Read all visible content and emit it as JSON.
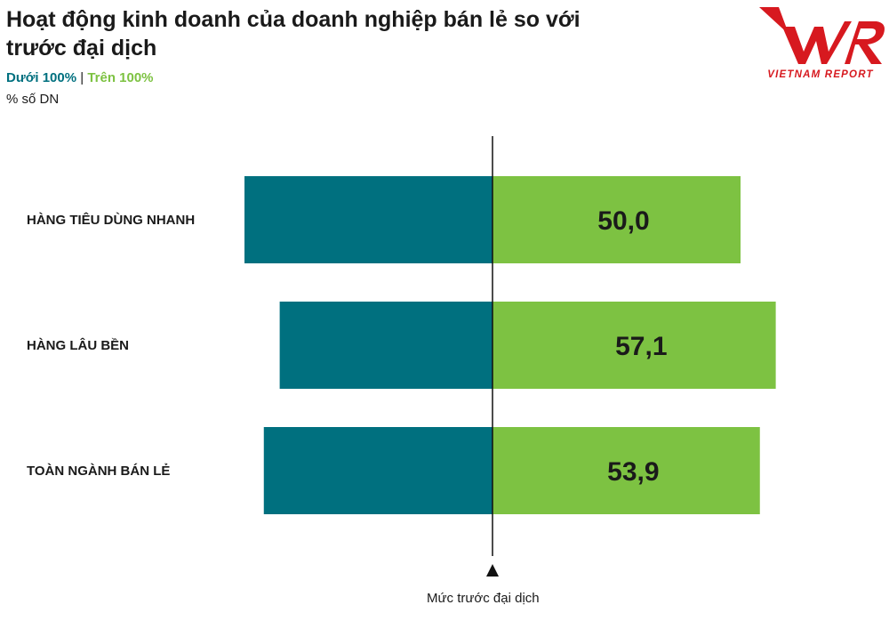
{
  "header": {
    "title": "Hoạt động kinh doanh của doanh nghiệp bán lẻ so với trước đại dịch",
    "legend_below": "Dưới 100%",
    "legend_separator": "|",
    "legend_above": "Trên 100%",
    "unit": "% số DN"
  },
  "logo": {
    "text": "VNR",
    "subtext": "VIETNAM REPORT",
    "color": "#d7191f"
  },
  "chart_data": {
    "type": "bar",
    "orientation": "horizontal-diverging",
    "categories": [
      "HÀNG TIÊU DÙNG NHANH",
      "HÀNG LÂU BỀN",
      "TOÀN NGÀNH BÁN LẺ"
    ],
    "series": [
      {
        "name": "Dưới 100%",
        "values": [
          50.0,
          42.9,
          46.1
        ],
        "color": "#00707f",
        "side": "left"
      },
      {
        "name": "Trên 100%",
        "values": [
          50.0,
          57.1,
          53.9
        ],
        "color": "#7dc242",
        "side": "right"
      }
    ],
    "data_labels": [
      "50,0",
      "57,1",
      "53,9"
    ],
    "reference_label": "Mức trước đại dịch",
    "legend_placement": "top-left",
    "grid": false
  }
}
